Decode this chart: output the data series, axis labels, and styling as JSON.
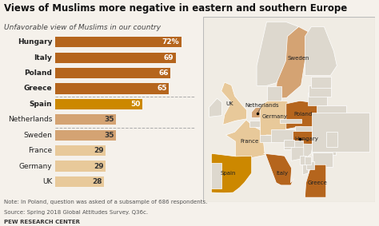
{
  "title": "Views of Muslims more negative in eastern and southern Europe",
  "subtitle": "Unfavorable view of Muslims in our country",
  "countries": [
    "Hungary",
    "Italy",
    "Poland",
    "Greece",
    "Spain",
    "Netherlands",
    "Sweden",
    "France",
    "Germany",
    "UK"
  ],
  "values": [
    72,
    69,
    66,
    65,
    50,
    35,
    35,
    29,
    29,
    28
  ],
  "bar_colors": [
    "#b5651d",
    "#b5651d",
    "#b5651d",
    "#b5651d",
    "#cc8800",
    "#d4a373",
    "#d4a373",
    "#e8c99a",
    "#e8c99a",
    "#e8c99a"
  ],
  "bg_color": "#f5f1eb",
  "map_bg": "#eeebe4",
  "map_border": "#cccccc",
  "non_highlighted": "#ddd8ce",
  "note": "Note: In Poland, question was asked of a subsample of 686 respondents.",
  "source": "Source: Spring 2018 Global Attitudes Survey. Q36c.",
  "credit": "PEW RESEARCH CENTER",
  "xlim": [
    0,
    80
  ],
  "divider_after_indices": [
    4,
    6
  ],
  "bold_countries": [
    "Hungary",
    "Italy",
    "Poland",
    "Greece",
    "Spain"
  ],
  "title_fontsize": 8.5,
  "subtitle_fontsize": 6.5,
  "bar_label_fontsize": 6.5,
  "country_fontsize": 6.5,
  "note_fontsize": 5.0,
  "map_label_fontsize": 5.0,
  "country_map_colors": {
    "Poland": "#b5651d",
    "Hungary": "#b5651d",
    "Italy": "#b5651d",
    "Greece": "#b5651d",
    "Spain": "#cc8800",
    "Netherlands": "#d4a373",
    "Sweden": "#d4a373",
    "France": "#e8c99a",
    "Germany": "#e8c99a",
    "UK": "#e8c99a"
  }
}
